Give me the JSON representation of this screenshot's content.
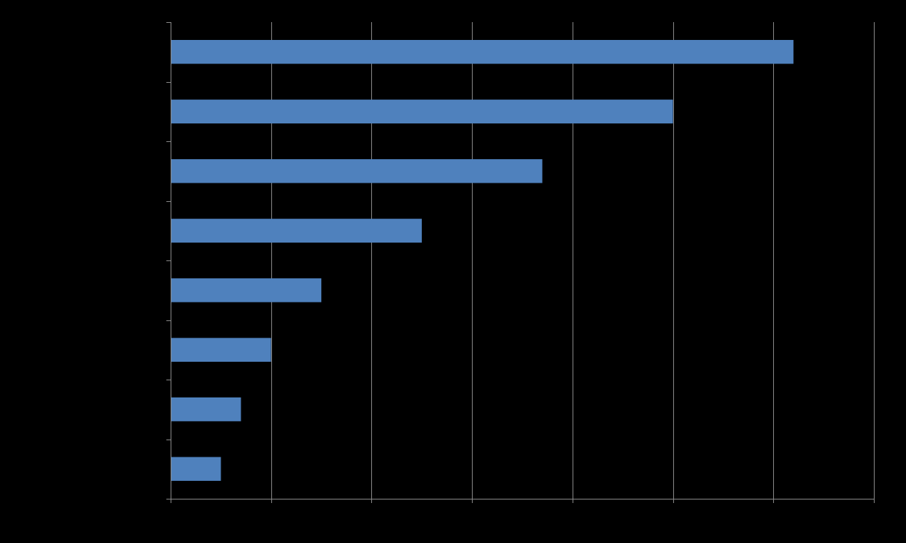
{
  "chart_data": {
    "type": "bar",
    "orientation": "horizontal",
    "title": "",
    "xlabel": "",
    "ylabel": "",
    "categories": [
      "",
      "",
      "",
      "",
      "",
      "",
      "",
      ""
    ],
    "series": [
      {
        "values": [
          6.2,
          5,
          3.7,
          2.5,
          1.5,
          1,
          0.7,
          0.5
        ]
      }
    ],
    "xlim": [
      0,
      7
    ],
    "x_ticks": [
      0,
      1,
      2,
      3,
      4,
      5,
      6,
      7
    ],
    "grid": "vertical",
    "legend": "none",
    "colors": {
      "background": "#000000",
      "bar": "#4F81BD",
      "grid": "#8C8C8C",
      "axis": "#8C8C8C"
    }
  }
}
